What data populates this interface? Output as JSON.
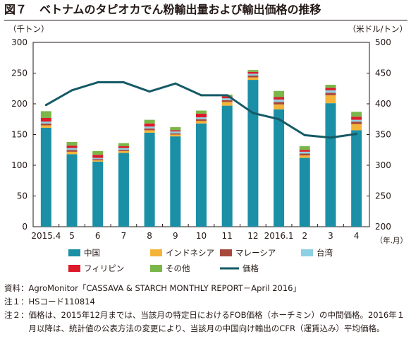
{
  "title": {
    "number": "図７",
    "text": "ベトナムのタピオカでん粉輸出量および輸出価格の推移"
  },
  "chart_data": {
    "type": "bar",
    "stacked": true,
    "categories": [
      "2015.4",
      "5",
      "6",
      "7",
      "8",
      "9",
      "10",
      "11",
      "12",
      "2016.1",
      "2",
      "3",
      "4"
    ],
    "x_unit_label": "（年.月）",
    "y_left": {
      "unit_label": "（千トン）",
      "ticks": [
        0,
        50,
        100,
        150,
        200,
        250,
        300
      ],
      "range": [
        0,
        300
      ]
    },
    "y_right": {
      "unit_label": "（米ドル/トン）",
      "ticks": [
        200,
        250,
        300,
        350,
        400,
        450,
        500
      ],
      "range": [
        200,
        500
      ]
    },
    "grid": false,
    "legend_position": "bottom",
    "series": [
      {
        "name": "中国",
        "color": "#1a8fa6",
        "values": [
          161,
          118,
          106,
          120,
          153,
          147,
          168,
          197,
          239,
          191,
          112,
          201,
          157
        ]
      },
      {
        "name": "インドネシア",
        "color": "#f4b43a",
        "values": [
          4,
          4,
          2,
          3,
          4,
          3,
          4,
          6,
          4,
          8,
          4,
          13,
          10
        ]
      },
      {
        "name": "マレーシア",
        "color": "#a8483a",
        "values": [
          3,
          3,
          2,
          2,
          3,
          2,
          3,
          3,
          3,
          4,
          3,
          4,
          4
        ]
      },
      {
        "name": "台湾",
        "color": "#8ed0e3",
        "values": [
          3,
          3,
          2,
          3,
          3,
          3,
          3,
          3,
          3,
          4,
          3,
          4,
          3
        ]
      },
      {
        "name": "フィリピン",
        "color": "#dd1a2a",
        "values": [
          6,
          4,
          5,
          3,
          5,
          2,
          6,
          3,
          3,
          4,
          3,
          4,
          5
        ]
      },
      {
        "name": "その他",
        "color": "#7ab648",
        "values": [
          11,
          6,
          6,
          5,
          6,
          5,
          5,
          3,
          3,
          10,
          6,
          5,
          8
        ]
      }
    ],
    "line_series": {
      "name": "価格",
      "color": "#155a66",
      "axis": "right",
      "values": [
        398,
        422,
        435,
        435,
        420,
        433,
        414,
        414,
        385,
        375,
        349,
        345,
        351
      ]
    }
  },
  "notes": [
    {
      "label": "資料：",
      "text": "AgroMonitor「CASSAVA & STARCH MONTHLY REPORT－April 2016」"
    },
    {
      "label": "注１：",
      "text": "HSコード110814"
    },
    {
      "label": "注２：",
      "text": "価格は、2015年12月までは、当該月の特定日におけるFOB価格（ホーチミン）の中間価格。2016年１月以降は、統計値の公表方法の変更により、当該月の中国向け輸出のCFR（運賃込み）平均価格。"
    }
  ]
}
